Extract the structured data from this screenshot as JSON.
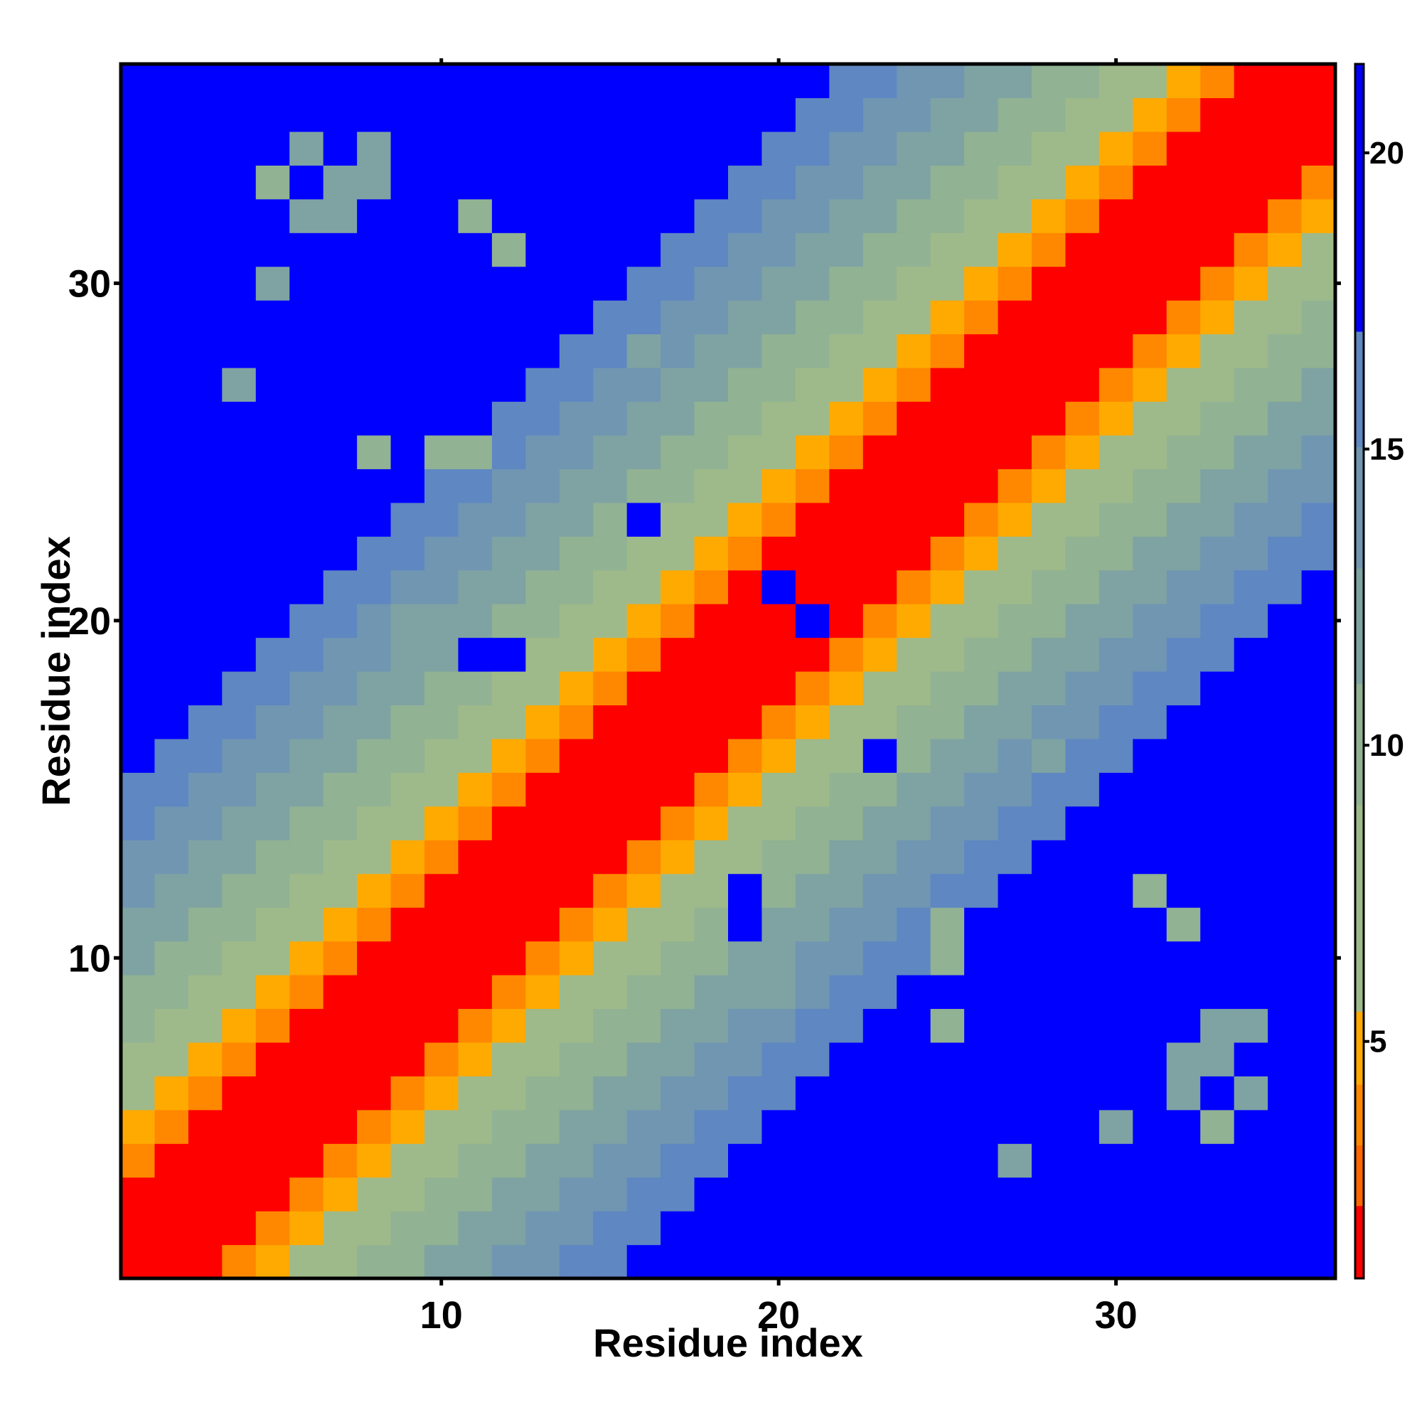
{
  "chart_data": {
    "type": "heatmap",
    "title": "",
    "xlabel": "Residue index",
    "ylabel": "Residue index",
    "n": 36,
    "x_range": [
      0.5,
      36.5
    ],
    "y_range": [
      0.5,
      36.5
    ],
    "x_ticks": [
      10,
      20,
      30
    ],
    "y_ticks": [
      10,
      20,
      30
    ],
    "colorbar": {
      "range": [
        1,
        21.5
      ],
      "ticks": [
        5,
        10,
        15,
        20
      ],
      "position": "right"
    },
    "colormap": [
      {
        "max": 2.25,
        "color": "#ff0000"
      },
      {
        "max": 3.25,
        "color": "#ff6600"
      },
      {
        "max": 4.25,
        "color": "#ff8800"
      },
      {
        "max": 5.5,
        "color": "#ffaa00"
      },
      {
        "max": 9.0,
        "color": "#9fba8a"
      },
      {
        "max": 11.0,
        "color": "#91b293"
      },
      {
        "max": 13.0,
        "color": "#7fa3a3"
      },
      {
        "max": 15.0,
        "color": "#7096b2"
      },
      {
        "max": 17.0,
        "color": "#5f87c2"
      },
      {
        "max": 99.0,
        "color": "#0000ff"
      }
    ],
    "exceptions_mean_distance": [
      {
        "i": 5,
        "j": 33,
        "value": 10.5
      },
      {
        "i": 7,
        "j": 33,
        "value": 10.5
      },
      {
        "i": 6,
        "j": 32,
        "value": 12
      },
      {
        "i": 7,
        "j": 32,
        "value": 12
      },
      {
        "i": 12,
        "j": 31,
        "value": 10.5
      },
      {
        "i": 16,
        "j": 28,
        "value": 12
      },
      {
        "i": 18,
        "j": 28,
        "value": 12
      },
      {
        "i": 4,
        "j": 27,
        "value": 12
      },
      {
        "i": 8,
        "j": 25,
        "value": 10
      },
      {
        "i": 10,
        "j": 25,
        "value": 10
      },
      {
        "i": 8,
        "j": 20,
        "value": 14
      },
      {
        "i": 9,
        "j": 20,
        "value": 12
      },
      {
        "i": 11,
        "j": 19,
        "value": 18
      },
      {
        "i": 12,
        "j": 19,
        "value": 18
      },
      {
        "i": 20,
        "j": 21,
        "value": 18
      },
      {
        "i": 23,
        "j": 16,
        "value": 18
      },
      {
        "i": 25,
        "j": 11,
        "value": 10
      },
      {
        "i": 32,
        "j": 11,
        "value": 10
      },
      {
        "i": 33,
        "j": 8,
        "value": 12
      },
      {
        "i": 34,
        "j": 8,
        "value": 12
      },
      {
        "i": 33,
        "j": 7,
        "value": 12
      },
      {
        "i": 34,
        "j": 6,
        "value": 12
      },
      {
        "i": 30,
        "j": 5,
        "value": 12
      }
    ],
    "mean_distance_by_separation": [
      0,
      1,
      2,
      3.5,
      5,
      7,
      8.5,
      9.5,
      10.5,
      11.5,
      12.5,
      13.5,
      14.5,
      16,
      17,
      19,
      20,
      21
    ]
  }
}
